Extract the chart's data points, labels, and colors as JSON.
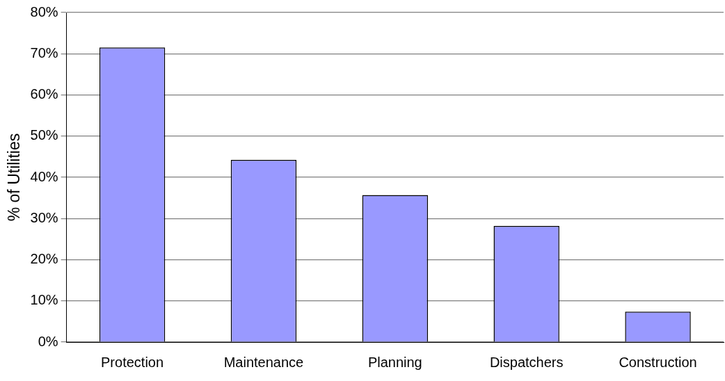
{
  "chart_data": {
    "type": "bar",
    "ylabel": "% of Utilities",
    "categories": [
      "Protection",
      "Maintenance",
      "Planning",
      "Dispatchers",
      "Construction"
    ],
    "values": [
      71.5,
      44.2,
      35.7,
      28.2,
      7.4
    ],
    "color": "#9999ff",
    "ylim": [
      0,
      80
    ],
    "yticks": [
      {
        "value": 0,
        "label": "0%"
      },
      {
        "value": 10,
        "label": "10%"
      },
      {
        "value": 20,
        "label": "20%"
      },
      {
        "value": 30,
        "label": "30%"
      },
      {
        "value": 40,
        "label": "40%"
      },
      {
        "value": 50,
        "label": "50%"
      },
      {
        "value": 60,
        "label": "60%"
      },
      {
        "value": 70,
        "label": "70%"
      },
      {
        "value": 80,
        "label": "80%"
      }
    ],
    "grid": "y",
    "legend": false
  }
}
